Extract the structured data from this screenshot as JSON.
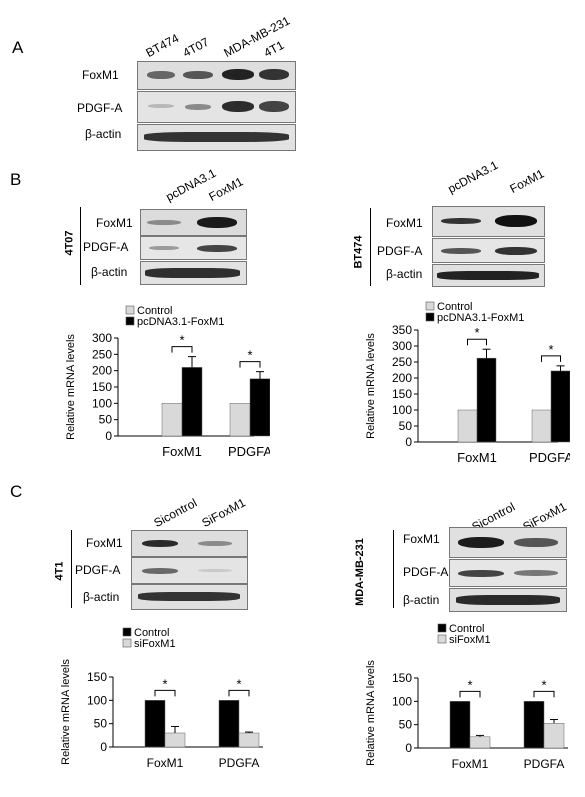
{
  "panels": {
    "a": {
      "letter": "A",
      "lanes": [
        "BT474",
        "4T07",
        "MDA-MB-231",
        "4T1"
      ],
      "rows": [
        "FoxM1",
        "PDGF-A",
        "β-actin"
      ]
    },
    "b": {
      "letter": "B",
      "left": {
        "cell_line": "4T07",
        "lanes": [
          "pcDNA3.1",
          "FoxM1"
        ],
        "rows": [
          "FoxM1",
          "PDGF-A",
          "β-actin"
        ]
      },
      "right": {
        "cell_line": "BT474",
        "lanes": [
          "pcDNA3.1",
          "FoxM1"
        ],
        "rows": [
          "FoxM1",
          "PDGF-A",
          "β-actin"
        ]
      }
    },
    "c": {
      "letter": "C",
      "left": {
        "cell_line": "4T1",
        "lanes": [
          "Sicontrol",
          "SiFoxM1"
        ],
        "rows": [
          "FoxM1",
          "PDGF-A",
          "β-actin"
        ]
      },
      "right": {
        "cell_line": "MDA-MB-231",
        "lanes": [
          "Sicontrol",
          "SiFoxM1"
        ],
        "rows": [
          "FoxM1",
          "PDGF-A",
          "β-actin"
        ]
      }
    }
  },
  "colors": {
    "black_bar": "#000000",
    "grey_bar": "#d9d9d9"
  },
  "chart_data": [
    {
      "type": "bar",
      "categories": [
        "FoxM1",
        "PDGFA"
      ],
      "series": [
        {
          "name": "Control",
          "values": [
            100,
            100
          ],
          "errors": [
            0,
            0
          ],
          "color": "#d9d9d9"
        },
        {
          "name": "pcDNA3.1-FoxM1",
          "values": [
            210,
            175
          ],
          "errors": [
            33,
            22
          ],
          "color": "#000000"
        }
      ],
      "ylabel": "Relative  mRNA levels",
      "ylim": [
        0,
        300
      ],
      "yticks": [
        "0",
        "50",
        "100",
        "150",
        "200",
        "250",
        "300"
      ],
      "significance": [
        "*",
        "*"
      ]
    },
    {
      "type": "bar",
      "categories": [
        "FoxM1",
        "PDGFA"
      ],
      "series": [
        {
          "name": "Control",
          "values": [
            100,
            100
          ],
          "errors": [
            0,
            0
          ],
          "color": "#d9d9d9"
        },
        {
          "name": "pcDNA3.1-FoxM1",
          "values": [
            262,
            222
          ],
          "errors": [
            28,
            16
          ],
          "color": "#000000"
        }
      ],
      "ylabel": "Relative  mRNA levels",
      "ylim": [
        0,
        350
      ],
      "yticks": [
        "0",
        "50",
        "100",
        "150",
        "200",
        "250",
        "300",
        "350"
      ],
      "significance": [
        "*",
        "*"
      ]
    },
    {
      "type": "bar",
      "categories": [
        "FoxM1",
        "PDGFA"
      ],
      "series": [
        {
          "name": "Control",
          "values": [
            100,
            100
          ],
          "errors": [
            0,
            0
          ],
          "color": "#000000"
        },
        {
          "name": "siFoxM1",
          "values": [
            30,
            30
          ],
          "errors": [
            14,
            2
          ],
          "color": "#d9d9d9"
        }
      ],
      "ylabel": "Relative  mRNA levels",
      "ylim": [
        0,
        150
      ],
      "yticks": [
        "0",
        "50",
        "100",
        "150"
      ],
      "significance": [
        "*",
        "*"
      ]
    },
    {
      "type": "bar",
      "categories": [
        "FoxM1",
        "PDGFA"
      ],
      "series": [
        {
          "name": "Control",
          "values": [
            100,
            100
          ],
          "errors": [
            0,
            0
          ],
          "color": "#000000"
        },
        {
          "name": "siFoxM1",
          "values": [
            24,
            53
          ],
          "errors": [
            3,
            8
          ],
          "color": "#d9d9d9"
        }
      ],
      "ylabel": "Relative  mRNA levels",
      "ylim": [
        0,
        150
      ],
      "yticks": [
        "0",
        "50",
        "100",
        "150"
      ],
      "significance": [
        "*",
        "*"
      ]
    }
  ]
}
